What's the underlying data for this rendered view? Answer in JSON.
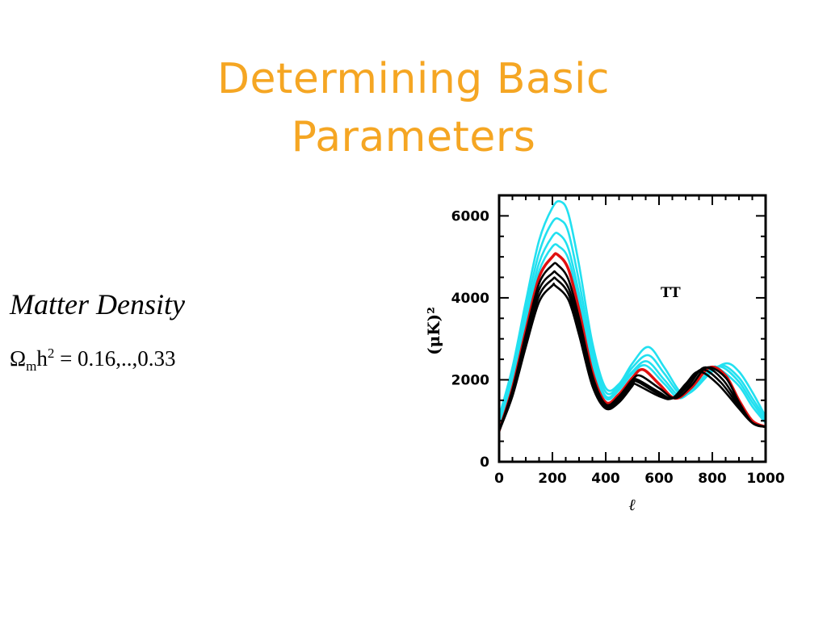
{
  "slide": {
    "title_line1": "Determining Basic",
    "title_line2": "Parameters",
    "subtitle": "Matter Density",
    "formula": {
      "symbol": "Ω",
      "sub": "m",
      "var": "h",
      "sup": "2",
      "rest": " = 0.16,..,0.33"
    }
  },
  "colors": {
    "title": "#f5a623",
    "cyan": "#22e0f0",
    "red": "#e01010",
    "black": "#000000"
  },
  "chart_data": {
    "type": "line",
    "xlabel": "ℓ",
    "ylabel": "(μK)²",
    "annotation": "TT",
    "xlim": [
      0,
      1000
    ],
    "ylim": [
      0,
      6500
    ],
    "xticks": [
      0,
      200,
      400,
      600,
      800,
      1000
    ],
    "yticks": [
      0,
      2000,
      4000,
      6000
    ],
    "series": [
      {
        "color": "#22e0f0",
        "points": [
          [
            0,
            1100
          ],
          [
            50,
            2300
          ],
          [
            100,
            3900
          ],
          [
            150,
            5400
          ],
          [
            200,
            6200
          ],
          [
            230,
            6350
          ],
          [
            260,
            6050
          ],
          [
            300,
            4800
          ],
          [
            350,
            2900
          ],
          [
            400,
            1800
          ],
          [
            450,
            1900
          ],
          [
            500,
            2400
          ],
          [
            560,
            2800
          ],
          [
            620,
            2300
          ],
          [
            680,
            1700
          ],
          [
            720,
            1700
          ],
          [
            780,
            2100
          ],
          [
            850,
            2400
          ],
          [
            900,
            2200
          ],
          [
            950,
            1700
          ],
          [
            1000,
            1100
          ]
        ]
      },
      {
        "color": "#22e0f0",
        "points": [
          [
            0,
            1000
          ],
          [
            50,
            2200
          ],
          [
            100,
            3700
          ],
          [
            150,
            5100
          ],
          [
            200,
            5850
          ],
          [
            230,
            5900
          ],
          [
            260,
            5600
          ],
          [
            300,
            4400
          ],
          [
            350,
            2700
          ],
          [
            400,
            1700
          ],
          [
            450,
            1850
          ],
          [
            500,
            2300
          ],
          [
            560,
            2600
          ],
          [
            620,
            2150
          ],
          [
            680,
            1650
          ],
          [
            730,
            1750
          ],
          [
            790,
            2150
          ],
          [
            840,
            2350
          ],
          [
            900,
            2050
          ],
          [
            950,
            1550
          ],
          [
            1000,
            1050
          ]
        ]
      },
      {
        "color": "#22e0f0",
        "points": [
          [
            0,
            950
          ],
          [
            50,
            2100
          ],
          [
            100,
            3500
          ],
          [
            150,
            4850
          ],
          [
            200,
            5500
          ],
          [
            225,
            5550
          ],
          [
            260,
            5200
          ],
          [
            300,
            4100
          ],
          [
            350,
            2500
          ],
          [
            400,
            1600
          ],
          [
            450,
            1800
          ],
          [
            500,
            2200
          ],
          [
            555,
            2450
          ],
          [
            620,
            2000
          ],
          [
            680,
            1600
          ],
          [
            740,
            1850
          ],
          [
            800,
            2250
          ],
          [
            840,
            2300
          ],
          [
            900,
            1950
          ],
          [
            950,
            1450
          ],
          [
            1000,
            1000
          ]
        ]
      },
      {
        "color": "#22e0f0",
        "points": [
          [
            0,
            900
          ],
          [
            50,
            2000
          ],
          [
            100,
            3400
          ],
          [
            150,
            4650
          ],
          [
            200,
            5250
          ],
          [
            225,
            5250
          ],
          [
            260,
            4950
          ],
          [
            300,
            3900
          ],
          [
            350,
            2400
          ],
          [
            400,
            1550
          ],
          [
            450,
            1750
          ],
          [
            500,
            2150
          ],
          [
            550,
            2350
          ],
          [
            620,
            1900
          ],
          [
            680,
            1550
          ],
          [
            750,
            1950
          ],
          [
            800,
            2300
          ],
          [
            830,
            2250
          ],
          [
            900,
            1850
          ],
          [
            950,
            1350
          ],
          [
            1000,
            950
          ]
        ]
      },
      {
        "color": "#e01010",
        "points": [
          [
            0,
            750
          ],
          [
            50,
            1800
          ],
          [
            100,
            3200
          ],
          [
            150,
            4500
          ],
          [
            200,
            5000
          ],
          [
            220,
            5050
          ],
          [
            260,
            4700
          ],
          [
            300,
            3700
          ],
          [
            350,
            2200
          ],
          [
            400,
            1450
          ],
          [
            450,
            1650
          ],
          [
            500,
            2050
          ],
          [
            540,
            2250
          ],
          [
            600,
            1900
          ],
          [
            660,
            1550
          ],
          [
            720,
            1800
          ],
          [
            790,
            2300
          ],
          [
            850,
            2100
          ],
          [
            900,
            1500
          ],
          [
            950,
            1000
          ],
          [
            1000,
            850
          ]
        ]
      },
      {
        "color": "#000000",
        "points": [
          [
            0,
            750
          ],
          [
            50,
            1750
          ],
          [
            100,
            3100
          ],
          [
            150,
            4350
          ],
          [
            200,
            4800
          ],
          [
            220,
            4800
          ],
          [
            260,
            4450
          ],
          [
            300,
            3500
          ],
          [
            350,
            2100
          ],
          [
            400,
            1400
          ],
          [
            450,
            1600
          ],
          [
            500,
            2000
          ],
          [
            530,
            2100
          ],
          [
            600,
            1800
          ],
          [
            660,
            1550
          ],
          [
            720,
            1850
          ],
          [
            780,
            2300
          ],
          [
            850,
            2050
          ],
          [
            900,
            1450
          ],
          [
            950,
            950
          ],
          [
            1000,
            850
          ]
        ]
      },
      {
        "color": "#000000",
        "points": [
          [
            0,
            750
          ],
          [
            50,
            1700
          ],
          [
            100,
            3000
          ],
          [
            150,
            4200
          ],
          [
            200,
            4600
          ],
          [
            215,
            4600
          ],
          [
            260,
            4250
          ],
          [
            300,
            3350
          ],
          [
            350,
            2000
          ],
          [
            400,
            1350
          ],
          [
            450,
            1550
          ],
          [
            500,
            1950
          ],
          [
            520,
            2000
          ],
          [
            600,
            1700
          ],
          [
            650,
            1550
          ],
          [
            710,
            1850
          ],
          [
            770,
            2300
          ],
          [
            840,
            2000
          ],
          [
            900,
            1400
          ],
          [
            950,
            950
          ],
          [
            1000,
            850
          ]
        ]
      },
      {
        "color": "#000000",
        "points": [
          [
            0,
            750
          ],
          [
            50,
            1650
          ],
          [
            100,
            2900
          ],
          [
            150,
            4050
          ],
          [
            200,
            4450
          ],
          [
            215,
            4450
          ],
          [
            260,
            4100
          ],
          [
            300,
            3200
          ],
          [
            350,
            1900
          ],
          [
            400,
            1300
          ],
          [
            450,
            1500
          ],
          [
            500,
            1900
          ],
          [
            520,
            1950
          ],
          [
            600,
            1650
          ],
          [
            650,
            1550
          ],
          [
            700,
            1850
          ],
          [
            760,
            2250
          ],
          [
            830,
            1950
          ],
          [
            900,
            1350
          ],
          [
            950,
            950
          ],
          [
            1000,
            850
          ]
        ]
      },
      {
        "color": "#000000",
        "points": [
          [
            0,
            750
          ],
          [
            50,
            1600
          ],
          [
            100,
            2800
          ],
          [
            150,
            3900
          ],
          [
            200,
            4300
          ],
          [
            210,
            4300
          ],
          [
            260,
            3950
          ],
          [
            300,
            3100
          ],
          [
            350,
            1850
          ],
          [
            400,
            1300
          ],
          [
            450,
            1450
          ],
          [
            500,
            1850
          ],
          [
            510,
            1900
          ],
          [
            600,
            1600
          ],
          [
            650,
            1550
          ],
          [
            700,
            1900
          ],
          [
            750,
            2200
          ],
          [
            820,
            1900
          ],
          [
            900,
            1300
          ],
          [
            950,
            950
          ],
          [
            1000,
            850
          ]
        ]
      }
    ]
  }
}
